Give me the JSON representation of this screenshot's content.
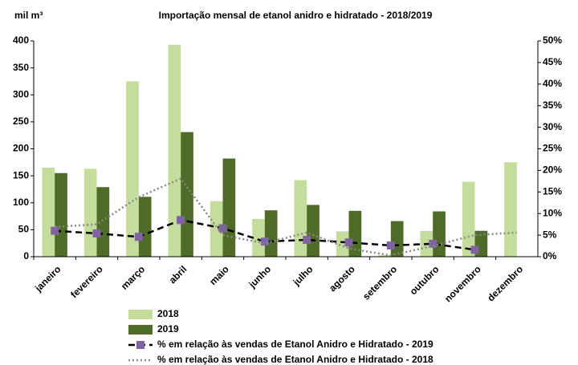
{
  "chart_data": {
    "type": "bar_line",
    "title": "Importação mensal de etanol  anidro e hidratado - 2018/2019",
    "y_label": "mil m³",
    "categories": [
      "janeiro",
      "fevereiro",
      "março",
      "abril",
      "maio",
      "junho",
      "julho",
      "agosto",
      "setembro",
      "outubro",
      "novembro",
      "dezembro"
    ],
    "series": [
      {
        "name": "2018",
        "color": "#c5dd9c",
        "kind": "bar",
        "values": [
          165,
          163,
          325,
          393,
          103,
          70,
          142,
          47,
          3,
          48,
          139,
          175
        ]
      },
      {
        "name": "2019",
        "color": "#4f6b28",
        "kind": "bar",
        "values": [
          155,
          129,
          111,
          231,
          182,
          86,
          96,
          85,
          66,
          84,
          48,
          null
        ]
      },
      {
        "name": "% em relação às vendas de Etanol Anidro e Hidratado - 2019",
        "color": "#000000",
        "marker_color": "#8064a2",
        "kind": "dashed",
        "axis": "y2",
        "values": [
          6.0,
          5.4,
          4.6,
          8.5,
          6.6,
          3.5,
          3.9,
          3.3,
          2.6,
          3.0,
          1.6,
          null
        ]
      },
      {
        "name": "% em relação às vendas de Etanol Anidro e Hidratado - 2018",
        "color": "#888888",
        "kind": "dotted",
        "axis": "y2",
        "values": [
          6.9,
          7.5,
          13.8,
          18.1,
          5.0,
          3.1,
          5.6,
          1.9,
          0.3,
          2.5,
          5.0,
          5.6
        ]
      }
    ],
    "ylim": [
      0,
      400
    ],
    "yticks": [
      0,
      50,
      100,
      150,
      200,
      250,
      300,
      350,
      400
    ],
    "y2lim": [
      0,
      50
    ],
    "y2ticks": [
      {
        "value": 0,
        "label": "0%"
      },
      {
        "value": 5,
        "label": "5%"
      },
      {
        "value": 10,
        "label": "10%"
      },
      {
        "value": 15,
        "label": "15%"
      },
      {
        "value": 20,
        "label": "20%"
      },
      {
        "value": 25,
        "label": "25%"
      },
      {
        "value": 30,
        "label": "30%"
      },
      {
        "value": 35,
        "label": "35%"
      },
      {
        "value": 40,
        "label": "40%"
      },
      {
        "value": 45,
        "label": "45%"
      },
      {
        "value": 50,
        "label": "50%"
      }
    ]
  }
}
